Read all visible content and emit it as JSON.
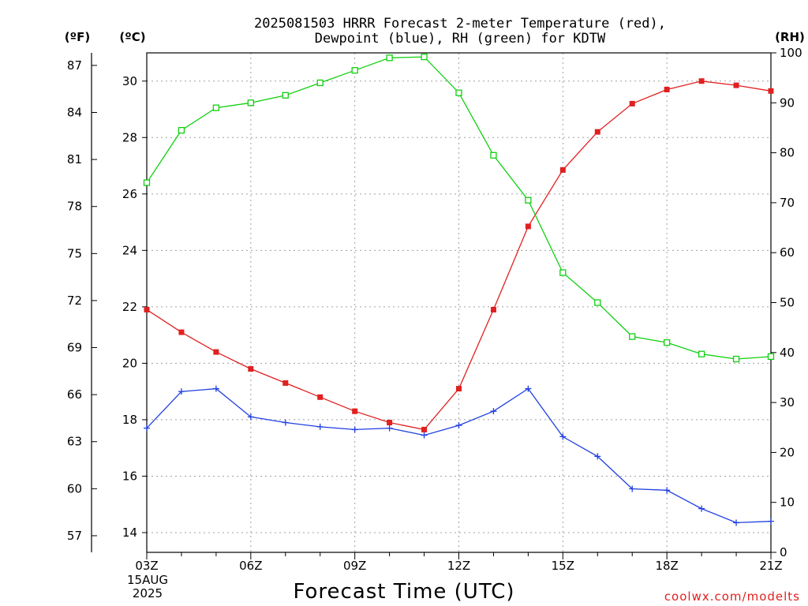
{
  "chart_data": {
    "type": "line",
    "title_line1": "2025081503 HRRR Forecast 2-meter Temperature (red),",
    "title_line2": "Dewpoint (blue), RH (green) for KDTW",
    "xlabel": "Forecast Time (UTC)",
    "x_tick_labels": [
      "03Z",
      "06Z",
      "09Z",
      "12Z",
      "15Z",
      "18Z",
      "21Z"
    ],
    "x_date_line1": "15AUG",
    "x_date_line2": "2025",
    "x": [
      3,
      4,
      5,
      6,
      7,
      8,
      9,
      10,
      11,
      12,
      13,
      14,
      15,
      16,
      17,
      18,
      19,
      20,
      21
    ],
    "xlim": [
      3,
      21
    ],
    "y_celsius": {
      "unit_label": "(ºC)",
      "ylim": [
        13.3,
        31.0
      ],
      "ticks": [
        "14",
        "16",
        "18",
        "20",
        "22",
        "24",
        "26",
        "28",
        "30"
      ],
      "tick_values": [
        14,
        16,
        18,
        20,
        22,
        24,
        26,
        28,
        30
      ]
    },
    "y_fahrenheit": {
      "unit_label": "(ºF)",
      "ticks": [
        "57",
        "60",
        "63",
        "66",
        "69",
        "72",
        "75",
        "78",
        "81",
        "84",
        "87"
      ],
      "tick_values": [
        57,
        60,
        63,
        66,
        69,
        72,
        75,
        78,
        81,
        84,
        87
      ]
    },
    "y_rh": {
      "unit_label": "(RH)",
      "ylim": [
        0,
        100
      ],
      "ticks": [
        "0",
        "10",
        "20",
        "30",
        "40",
        "50",
        "60",
        "70",
        "80",
        "90",
        "100"
      ],
      "tick_values": [
        0,
        10,
        20,
        30,
        40,
        50,
        60,
        70,
        80,
        90,
        100
      ]
    },
    "series": [
      {
        "key": "temperature",
        "color": "#e02020",
        "marker": "filled-square",
        "axis": "celsius",
        "values": [
          21.9,
          21.1,
          20.4,
          19.8,
          19.3,
          18.8,
          18.3,
          17.9,
          17.65,
          19.1,
          21.9,
          24.85,
          26.85,
          28.2,
          29.2,
          29.7,
          30.0,
          29.85,
          29.65
        ]
      },
      {
        "key": "dewpoint",
        "color": "#2040e0",
        "marker": "plus",
        "axis": "celsius",
        "values": [
          17.7,
          19.0,
          19.1,
          18.1,
          17.9,
          17.75,
          17.65,
          17.7,
          17.45,
          17.8,
          18.3,
          19.1,
          17.4,
          16.7,
          15.55,
          15.5,
          14.85,
          14.35,
          14.4
        ]
      },
      {
        "key": "rh",
        "color": "#10d010",
        "marker": "open-square",
        "axis": "rh",
        "values": [
          74,
          84.5,
          89,
          90,
          91.5,
          94,
          96.5,
          99,
          99.2,
          92,
          79.5,
          70.5,
          56,
          50,
          43.2,
          42,
          39.7,
          38.7,
          39.2
        ]
      }
    ]
  },
  "credit": "coolwx.com/modelts"
}
